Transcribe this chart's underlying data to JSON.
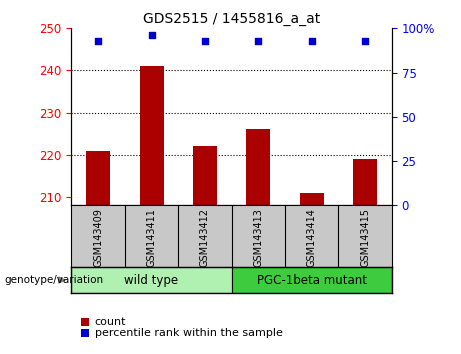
{
  "title": "GDS2515 / 1455816_a_at",
  "samples": [
    "GSM143409",
    "GSM143411",
    "GSM143412",
    "GSM143413",
    "GSM143414",
    "GSM143415"
  ],
  "counts": [
    221,
    241,
    222,
    226,
    211,
    219
  ],
  "percentile_ranks": [
    93,
    96,
    93,
    93,
    93,
    93
  ],
  "ymin": 208,
  "ymax": 250,
  "y_ticks_left": [
    210,
    220,
    230,
    240,
    250
  ],
  "right_yticks": [
    0,
    25,
    50,
    75,
    100
  ],
  "bar_color": "#aa0000",
  "dot_color": "#0000cc",
  "groups": [
    {
      "label": "wild type",
      "n_samples": 3,
      "color": "#90ee90"
    },
    {
      "label": "PGC-1beta mutant",
      "n_samples": 3,
      "color": "#3dcc3d"
    }
  ],
  "group_label": "genotype/variation",
  "legend_count_label": "count",
  "legend_pct_label": "percentile rank within the sample",
  "grid_lines": [
    220,
    230,
    240
  ],
  "tick_area_color": "#c8c8c8",
  "wild_type_color": "#b0f0b0",
  "mutant_color": "#3dcc3d"
}
